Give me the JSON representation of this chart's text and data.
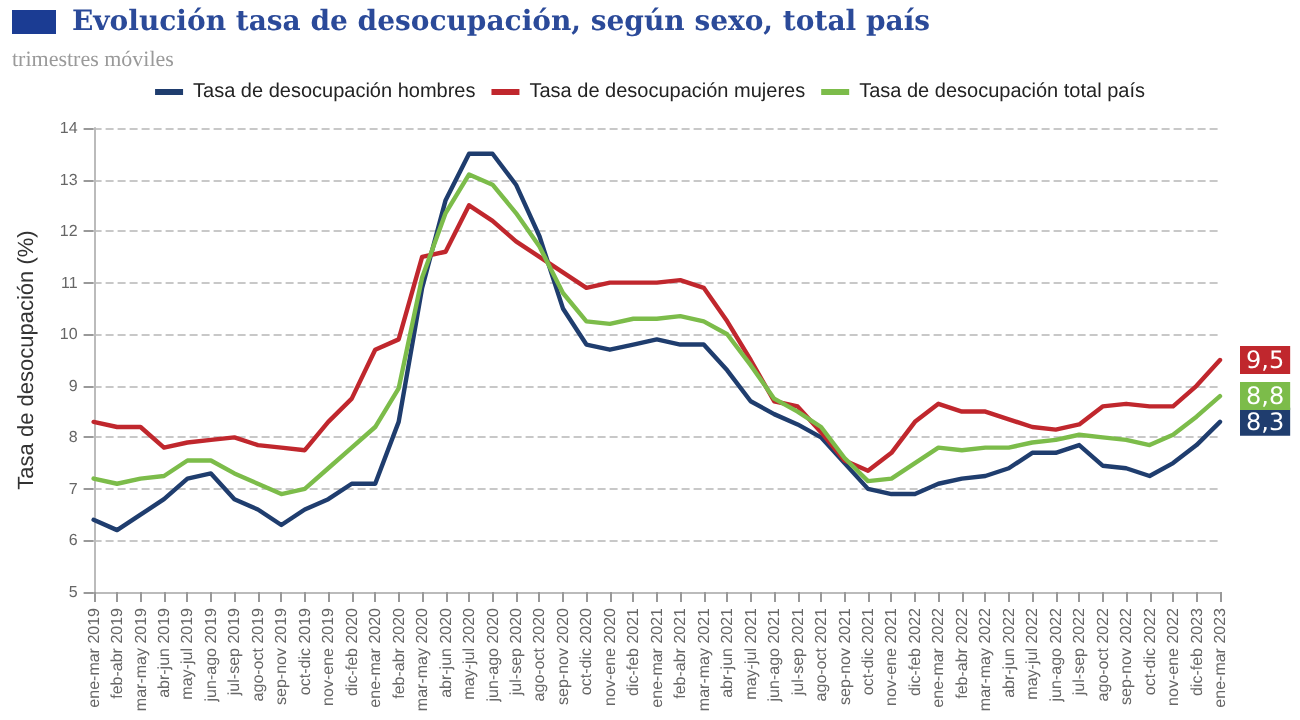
{
  "chart_data": {
    "type": "line",
    "title": "Evolución tasa de desocupación, según sexo, total país",
    "subtitle": "trimestres móviles",
    "ylabel": "Tasa de desocupación (%)",
    "categories": [
      "ene-mar 2019",
      "feb-abr 2019",
      "mar-may 2019",
      "abr-jun 2019",
      "may-jul 2019",
      "jun-ago 2019",
      "jul-sep 2019",
      "ago-oct 2019",
      "sep-nov 2019",
      "oct-dic 2019",
      "nov-ene 2019",
      "dic-feb 2020",
      "ene-mar 2020",
      "feb-abr 2020",
      "mar-may 2020",
      "abr-jun 2020",
      "may-jul 2020",
      "jun-ago 2020",
      "jul-sep 2020",
      "ago-oct 2020",
      "sep-nov 2020",
      "oct-dic 2020",
      "nov-ene 2020",
      "dic-feb 2021",
      "ene-mar 2021",
      "feb-abr 2021",
      "mar-may 2021",
      "abr-jun 2021",
      "may-jul 2021",
      "jun-ago 2021",
      "jul-sep 2021",
      "ago-oct 2021",
      "sep-nov 2021",
      "oct-dic 2021",
      "nov-ene 2021",
      "dic-feb 2022",
      "ene-mar 2022",
      "feb-abr 2022",
      "mar-may 2022",
      "abr-jun 2022",
      "may-jul 2022",
      "jun-ago 2022",
      "jul-sep 2022",
      "ago-oct 2022",
      "sep-nov 2022",
      "oct-dic 2022",
      "nov-ene 2022",
      "dic-feb 2023",
      "ene-mar 2023"
    ],
    "series": [
      {
        "name": "Tasa de desocupación hombres",
        "color": "#1f3d6e",
        "values": [
          6.4,
          6.2,
          6.5,
          6.8,
          7.2,
          7.3,
          6.8,
          6.6,
          6.3,
          6.6,
          6.8,
          7.1,
          7.1,
          8.3,
          10.9,
          12.6,
          13.5,
          13.5,
          12.9,
          11.9,
          10.5,
          9.8,
          9.7,
          9.8,
          9.9,
          9.8,
          9.8,
          9.3,
          8.7,
          8.45,
          8.25,
          8.0,
          7.5,
          7.0,
          6.9,
          6.9,
          7.1,
          7.2,
          7.25,
          7.4,
          7.7,
          7.7,
          7.85,
          7.45,
          7.4,
          7.25,
          7.5,
          7.85,
          8.3
        ],
        "value_labels": [
          null,
          null,
          null,
          null,
          null,
          null,
          null,
          null,
          null,
          null,
          null,
          null,
          null,
          null,
          null,
          null,
          null,
          null,
          null,
          null,
          null,
          null,
          null,
          null,
          null,
          null,
          null,
          null,
          null,
          null,
          null,
          null,
          null,
          null,
          null,
          null,
          null,
          null,
          null,
          null,
          null,
          null,
          null,
          null,
          null,
          null,
          null,
          null,
          "8,3"
        ]
      },
      {
        "name": "Tasa de desocupación mujeres",
        "color": "#c0272d",
        "values": [
          8.3,
          8.2,
          8.2,
          7.8,
          7.9,
          7.95,
          8.0,
          7.85,
          7.8,
          7.75,
          8.3,
          8.75,
          9.7,
          9.9,
          11.5,
          11.6,
          12.5,
          12.2,
          11.8,
          11.5,
          11.2,
          10.9,
          11.0,
          11.0,
          11.0,
          11.05,
          10.9,
          10.25,
          9.5,
          8.7,
          8.6,
          8.1,
          7.55,
          7.35,
          7.7,
          8.3,
          8.65,
          8.5,
          8.5,
          8.35,
          8.2,
          8.15,
          8.25,
          8.6,
          8.65,
          8.6,
          8.6,
          9.0,
          9.5
        ],
        "value_labels": [
          null,
          null,
          null,
          null,
          null,
          null,
          null,
          null,
          null,
          null,
          null,
          null,
          null,
          null,
          null,
          null,
          null,
          null,
          null,
          null,
          null,
          null,
          null,
          null,
          null,
          null,
          null,
          null,
          null,
          null,
          null,
          null,
          null,
          null,
          null,
          null,
          null,
          null,
          null,
          null,
          null,
          null,
          null,
          null,
          null,
          null,
          null,
          null,
          "9,5"
        ]
      },
      {
        "name": "Tasa de desocupación total país",
        "color": "#7cbc4a",
        "values": [
          7.2,
          7.1,
          7.2,
          7.25,
          7.55,
          7.55,
          7.3,
          7.1,
          6.9,
          7.0,
          7.4,
          7.8,
          8.2,
          8.95,
          11.1,
          12.35,
          13.1,
          12.9,
          12.35,
          11.7,
          10.8,
          10.25,
          10.2,
          10.3,
          10.3,
          10.35,
          10.25,
          10.0,
          9.4,
          8.75,
          8.5,
          8.2,
          7.6,
          7.15,
          7.2,
          7.5,
          7.8,
          7.75,
          7.8,
          7.8,
          7.9,
          7.95,
          8.05,
          8.0,
          7.95,
          7.85,
          8.05,
          8.4,
          8.8
        ],
        "value_labels": [
          null,
          null,
          null,
          null,
          null,
          null,
          null,
          null,
          null,
          null,
          null,
          null,
          null,
          null,
          null,
          null,
          null,
          null,
          null,
          null,
          null,
          null,
          null,
          null,
          null,
          null,
          null,
          null,
          null,
          null,
          null,
          null,
          null,
          null,
          null,
          null,
          null,
          null,
          null,
          null,
          null,
          null,
          null,
          null,
          null,
          null,
          null,
          null,
          "8,8"
        ]
      }
    ],
    "ylim": [
      5,
      14
    ],
    "yticks": [
      5,
      6,
      7,
      8,
      9,
      10,
      11,
      12,
      13,
      14
    ],
    "grid": "y",
    "legend": "top",
    "marker": "none",
    "line_style": "solid"
  }
}
